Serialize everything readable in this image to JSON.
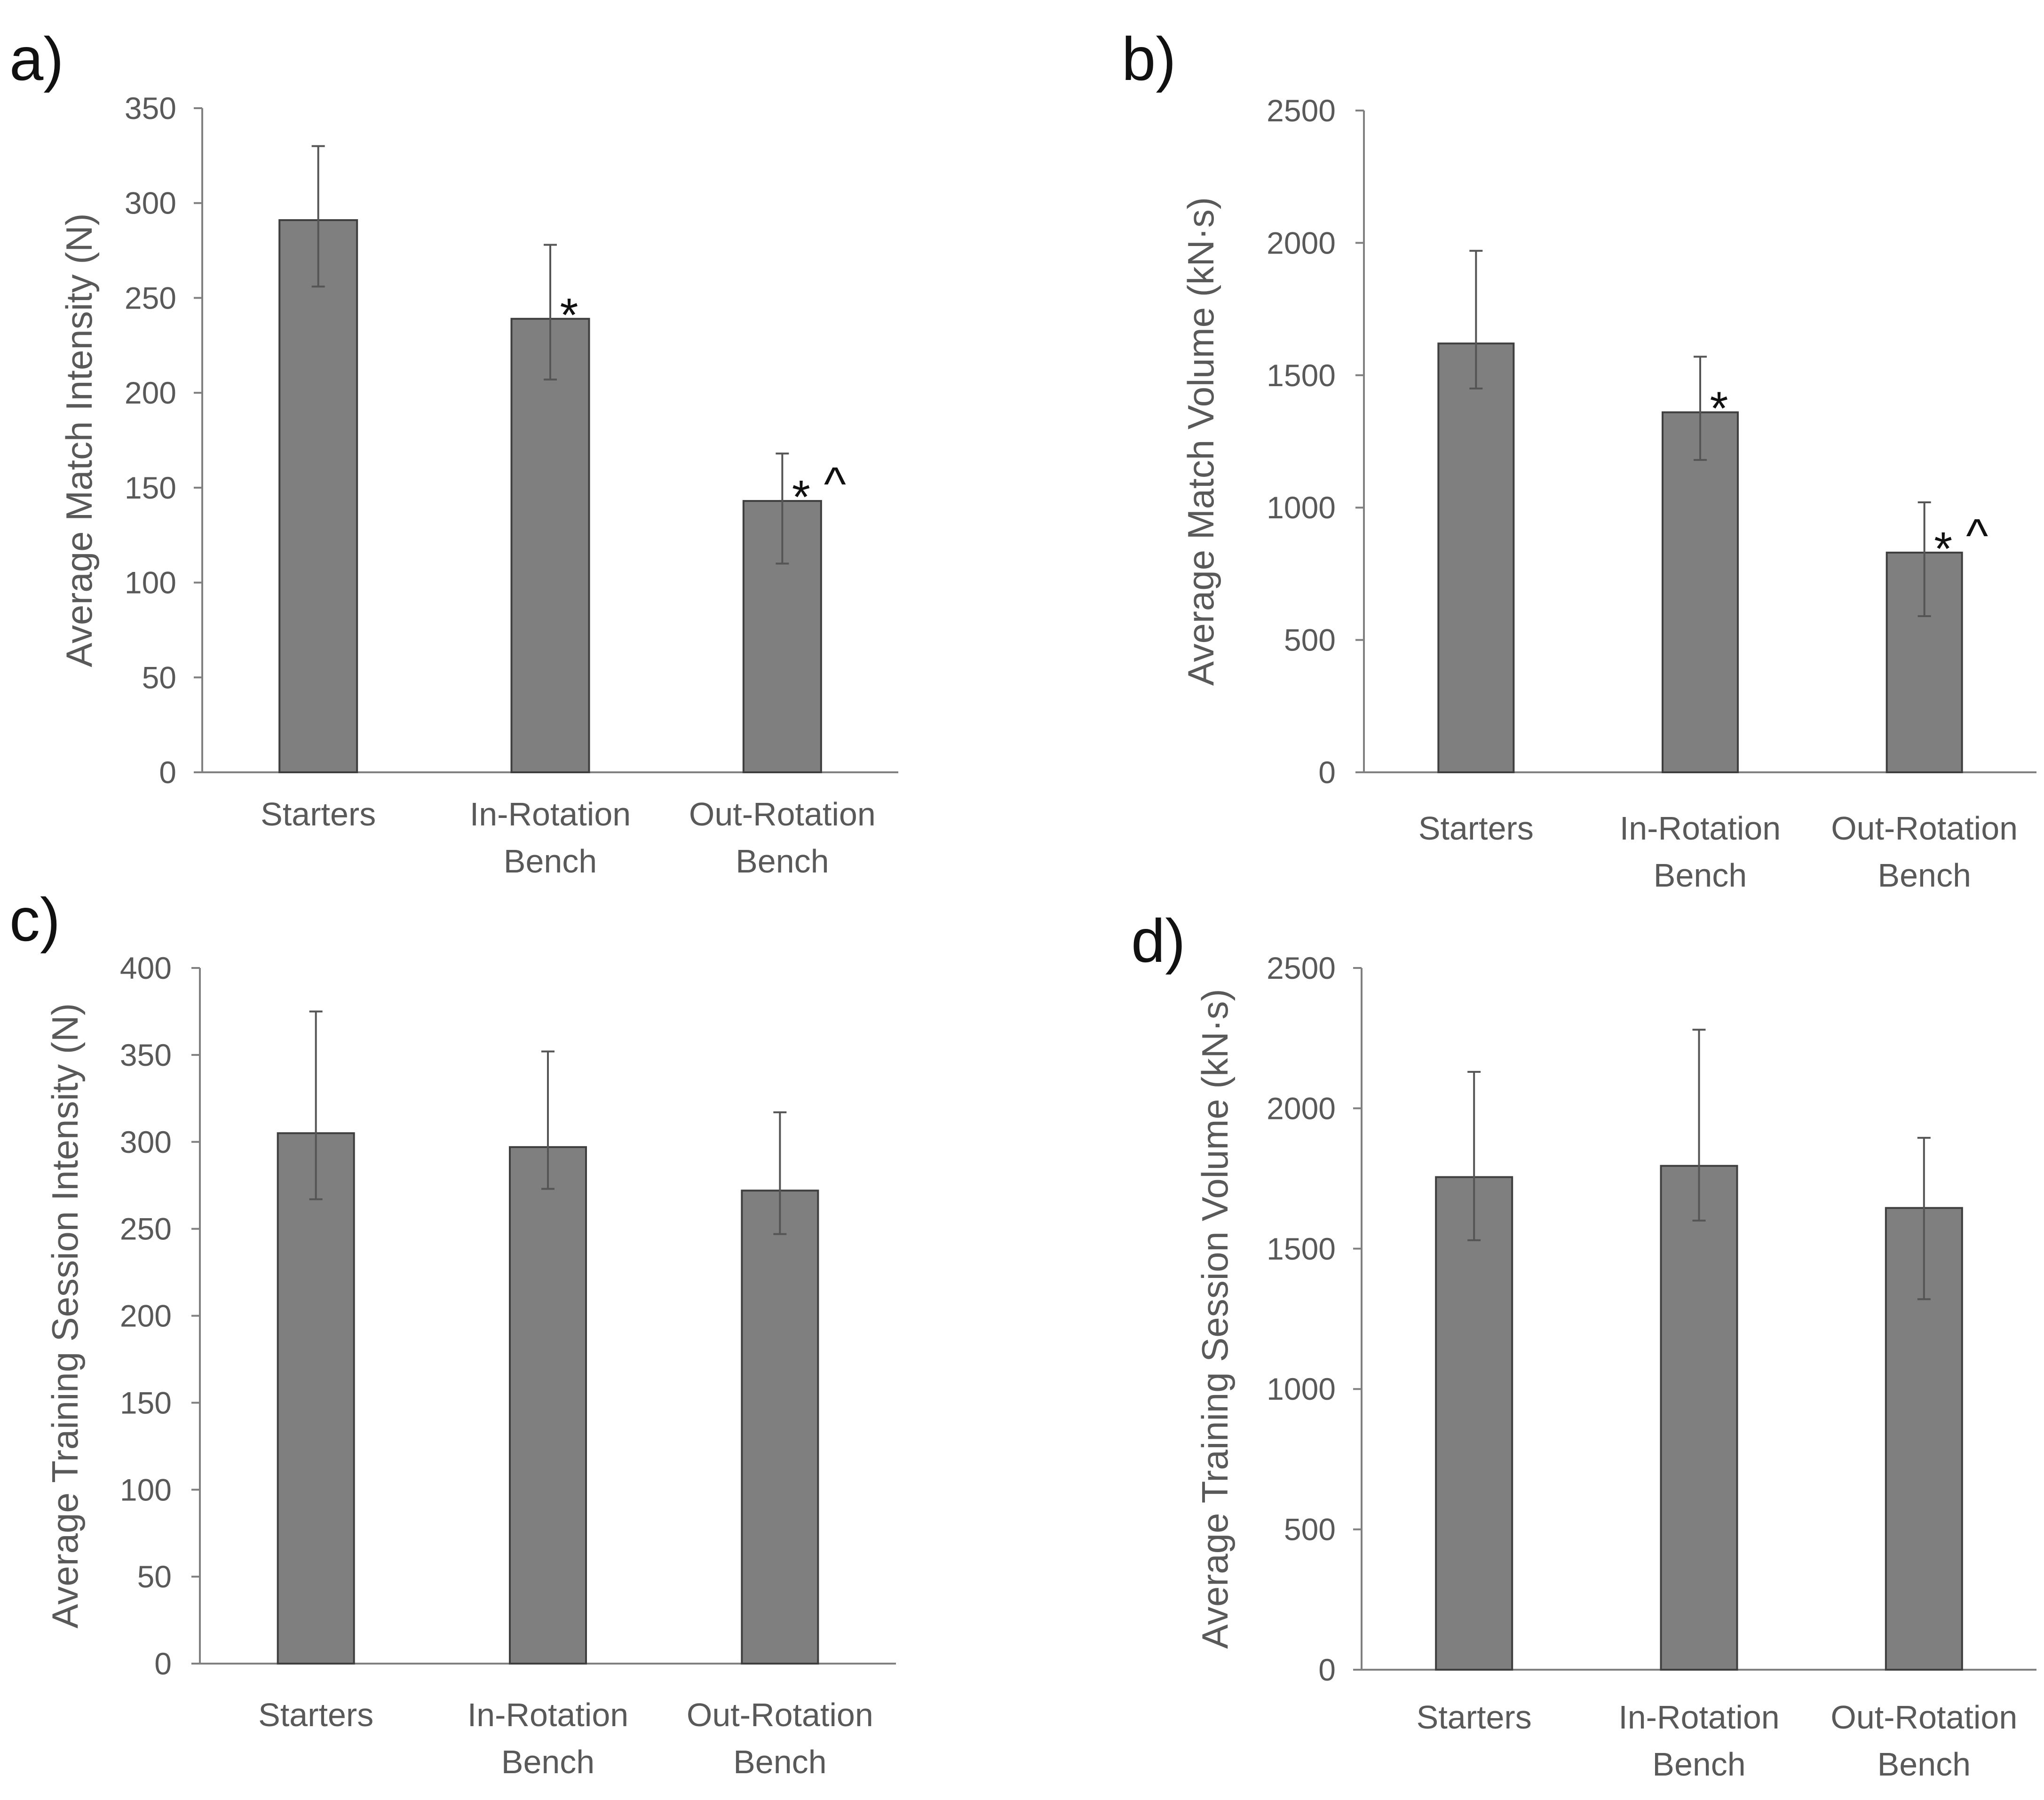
{
  "chart_data": [
    {
      "type": "bar",
      "panel_label": "a)",
      "ylabel": "Average Match Intensity (N)",
      "ylim": [
        0,
        350
      ],
      "yticks": [
        0,
        50,
        100,
        150,
        200,
        250,
        300,
        350
      ],
      "categories": [
        [
          "Starters"
        ],
        [
          "In-Rotation",
          "Bench"
        ],
        [
          "Out-Rotation",
          "Bench"
        ]
      ],
      "values": [
        291,
        239,
        143
      ],
      "err_low": [
        256,
        207,
        110
      ],
      "err_high": [
        330,
        278,
        168
      ],
      "annotations": [
        [],
        [
          "*"
        ],
        [
          "*",
          "^"
        ]
      ],
      "bar_color": "#7f7f7f"
    },
    {
      "type": "bar",
      "panel_label": "b)",
      "ylabel": "Average Match Volume (kN·s)",
      "ylim": [
        0,
        2500
      ],
      "yticks": [
        0,
        500,
        1000,
        1500,
        2000,
        2500
      ],
      "categories": [
        [
          "Starters"
        ],
        [
          "In-Rotation",
          "Bench"
        ],
        [
          "Out-Rotation",
          "Bench"
        ]
      ],
      "values": [
        1620,
        1360,
        830
      ],
      "err_low": [
        1450,
        1180,
        590
      ],
      "err_high": [
        1970,
        1570,
        1020
      ],
      "annotations": [
        [],
        [
          "*"
        ],
        [
          "*",
          "^"
        ]
      ],
      "bar_color": "#7f7f7f"
    },
    {
      "type": "bar",
      "panel_label": "c)",
      "ylabel": "Average Training Session Intensity (N)",
      "ylim": [
        0,
        400
      ],
      "yticks": [
        0,
        50,
        100,
        150,
        200,
        250,
        300,
        350,
        400
      ],
      "categories": [
        [
          "Starters"
        ],
        [
          "In-Rotation",
          "Bench"
        ],
        [
          "Out-Rotation",
          "Bench"
        ]
      ],
      "values": [
        305,
        297,
        272
      ],
      "err_low": [
        267,
        273,
        247
      ],
      "err_high": [
        375,
        352,
        317
      ],
      "annotations": [
        [],
        [],
        []
      ],
      "bar_color": "#7f7f7f"
    },
    {
      "type": "bar",
      "panel_label": "d)",
      "ylabel": "Average Training Session Volume (kN·s)",
      "ylim": [
        0,
        2500
      ],
      "yticks": [
        0,
        500,
        1000,
        1500,
        2000,
        2500
      ],
      "categories": [
        [
          "Starters"
        ],
        [
          "In-Rotation",
          "Bench"
        ],
        [
          "Out-Rotation",
          "Bench"
        ]
      ],
      "values": [
        1755,
        1795,
        1645
      ],
      "err_low": [
        1530,
        1600,
        1320
      ],
      "err_high": [
        2130,
        2280,
        1895
      ],
      "annotations": [
        [],
        [],
        []
      ],
      "bar_color": "#7f7f7f"
    }
  ]
}
